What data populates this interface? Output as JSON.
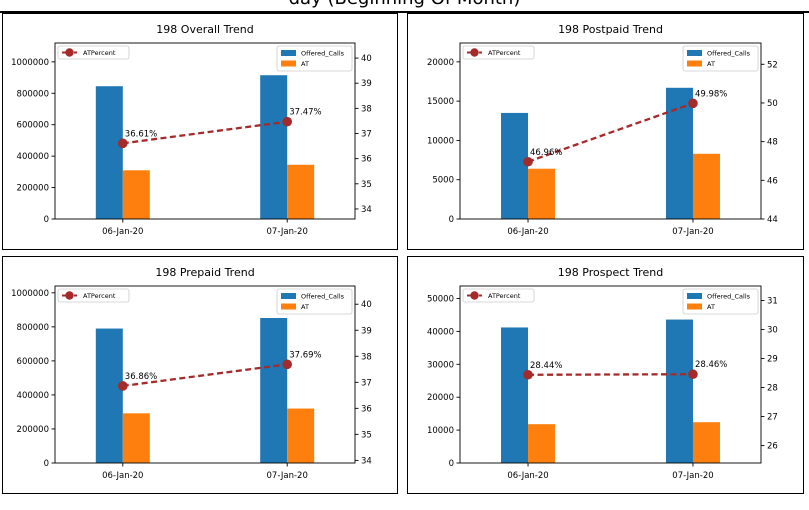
{
  "page": {
    "heading": "day (Beginning Of Month)"
  },
  "colors": {
    "offered_calls": "#1f77b4",
    "at": "#ff7f0e",
    "at_percent": "#a52a2a"
  },
  "chart_data": [
    {
      "type": "bar",
      "title": "198 Overall Trend",
      "categories": [
        "06-Jan-20",
        "07-Jan-20"
      ],
      "series": [
        {
          "name": "Offered_Calls",
          "values": [
            845000,
            915000
          ]
        },
        {
          "name": "AT",
          "values": [
            310000,
            345000
          ]
        }
      ],
      "line_series": {
        "name": "ATPercent",
        "values": [
          36.61,
          37.47
        ],
        "labels": [
          "36.61%",
          "37.47%"
        ]
      },
      "ylim": [
        0,
        1120000
      ],
      "yticks": [
        0,
        200000,
        400000,
        600000,
        800000,
        1000000
      ],
      "y2lim": [
        33.6,
        40.6
      ],
      "y2ticks": [
        34,
        35,
        36,
        37,
        38,
        39,
        40
      ],
      "legend_left": "top-left",
      "legend_right": "top-right",
      "grid": false
    },
    {
      "type": "bar",
      "title": "198 Postpaid Trend",
      "categories": [
        "06-Jan-20",
        "07-Jan-20"
      ],
      "series": [
        {
          "name": "Offered_Calls",
          "values": [
            13500,
            16700
          ]
        },
        {
          "name": "AT",
          "values": [
            6400,
            8300
          ]
        }
      ],
      "line_series": {
        "name": "ATPercent",
        "values": [
          46.96,
          49.98
        ],
        "labels": [
          "46.96%",
          "49.98%"
        ]
      },
      "ylim": [
        0,
        22400
      ],
      "yticks": [
        0,
        5000,
        10000,
        15000,
        20000
      ],
      "y2lim": [
        44,
        53.1
      ],
      "y2ticks": [
        44,
        46,
        48,
        50,
        52
      ],
      "legend_left": "top-left",
      "legend_right": "top-right",
      "grid": false
    },
    {
      "type": "bar",
      "title": "198 Prepaid Trend",
      "categories": [
        "06-Jan-20",
        "07-Jan-20"
      ],
      "series": [
        {
          "name": "Offered_Calls",
          "values": [
            790000,
            852000
          ]
        },
        {
          "name": "AT",
          "values": [
            292000,
            320000
          ]
        }
      ],
      "line_series": {
        "name": "ATPercent",
        "values": [
          36.86,
          37.69
        ],
        "labels": [
          "36.86%",
          "37.69%"
        ]
      },
      "ylim": [
        0,
        1040000
      ],
      "yticks": [
        0,
        200000,
        400000,
        600000,
        800000,
        1000000
      ],
      "y2lim": [
        33.9,
        40.7
      ],
      "y2ticks": [
        34,
        35,
        36,
        37,
        38,
        39,
        40
      ],
      "legend_left": "top-left",
      "legend_right": "top-right",
      "grid": false
    },
    {
      "type": "bar",
      "title": "198 Prospect Trend",
      "categories": [
        "06-Jan-20",
        "07-Jan-20"
      ],
      "series": [
        {
          "name": "Offered_Calls",
          "values": [
            41200,
            43600
          ]
        },
        {
          "name": "AT",
          "values": [
            11800,
            12400
          ]
        }
      ],
      "line_series": {
        "name": "ATPercent",
        "values": [
          28.44,
          28.46
        ],
        "labels": [
          "28.44%",
          "28.46%"
        ]
      },
      "ylim": [
        0,
        53800
      ],
      "yticks": [
        0,
        10000,
        20000,
        30000,
        40000,
        50000
      ],
      "y2lim": [
        25.4,
        31.5
      ],
      "y2ticks": [
        26,
        27,
        28,
        29,
        30,
        31
      ],
      "legend_left": "top-left",
      "legend_right": "top-right",
      "grid": false
    }
  ]
}
